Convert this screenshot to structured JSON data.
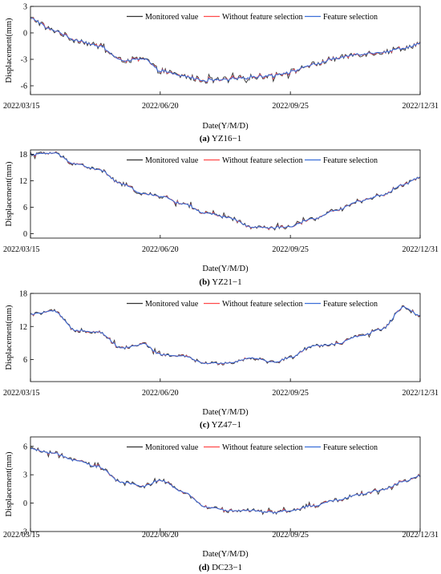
{
  "colors": {
    "monitored": "#333333",
    "without": "#ff4a4a",
    "feature": "#3a6fd8",
    "axis": "#000000"
  },
  "chart_data": [
    {
      "type": "line",
      "caption": {
        "letter": "(a)",
        "name": "YZ16−1"
      },
      "xlabel": "Date(Y/M/D)",
      "ylabel": "Displacement(mm)",
      "x_ticks": [
        "2022/03/15",
        "2022/06/20",
        "2022/09/25",
        "2022/12/31"
      ],
      "xlim": [
        "2022/03/15",
        "2022/12/31"
      ],
      "ylim": [
        -7,
        3
      ],
      "y_ticks": [
        "-6",
        "-3",
        "0",
        "3"
      ],
      "y_tick_values": [
        -6,
        -3,
        0,
        3
      ],
      "legend": [
        "Monitored value",
        "Without feature selection",
        "Feature selection"
      ],
      "legend_position": "top-right",
      "grid": false,
      "series_points": {
        "x": [
          "2022/03/15",
          "2022/04/01",
          "2022/04/18",
          "2022/05/05",
          "2022/05/22",
          "2022/06/08",
          "2022/06/20",
          "2022/07/07",
          "2022/07/24",
          "2022/08/10",
          "2022/08/27",
          "2022/09/13",
          "2022/09/25",
          "2022/10/12",
          "2022/10/29",
          "2022/11/15",
          "2022/12/02",
          "2022/12/19",
          "2022/12/31"
        ],
        "y": [
          1.6,
          0.3,
          -0.8,
          -1.5,
          -3.1,
          -3.0,
          -4.3,
          -4.9,
          -5.4,
          -5.3,
          -5.0,
          -4.8,
          -4.4,
          -3.6,
          -2.9,
          -2.4,
          -2.2,
          -1.7,
          -1.2
        ]
      },
      "noise_amplitude": 0.35
    },
    {
      "type": "line",
      "caption": {
        "letter": "(b)",
        "name": "YZ21−1"
      },
      "xlabel": "Date(Y/M/D)",
      "ylabel": "Displacement(mm)",
      "x_ticks": [
        "2022/03/15",
        "2022/06/20",
        "2022/09/25",
        "2022/12/31"
      ],
      "xlim": [
        "2022/03/15",
        "2022/12/31"
      ],
      "ylim": [
        -1,
        19
      ],
      "y_ticks": [
        "0",
        "6",
        "12",
        "18"
      ],
      "y_tick_values": [
        0,
        6,
        12,
        18
      ],
      "legend": [
        "Monitored value",
        "Without feature selection",
        "Feature selection"
      ],
      "legend_position": "top-right",
      "grid": false,
      "series_points": {
        "x": [
          "2022/03/15",
          "2022/04/01",
          "2022/04/18",
          "2022/05/05",
          "2022/05/22",
          "2022/06/08",
          "2022/06/20",
          "2022/07/07",
          "2022/07/24",
          "2022/08/10",
          "2022/08/27",
          "2022/09/13",
          "2022/09/25",
          "2022/10/12",
          "2022/10/29",
          "2022/11/15",
          "2022/12/02",
          "2022/12/19",
          "2022/12/31"
        ],
        "y": [
          18.0,
          18.3,
          15.8,
          14.5,
          11.3,
          9.0,
          8.5,
          6.8,
          4.6,
          3.6,
          1.5,
          1.3,
          1.6,
          3.4,
          5.2,
          7.4,
          8.7,
          11.2,
          12.8
        ]
      },
      "noise_amplitude": 0.5
    },
    {
      "type": "line",
      "caption": {
        "letter": "(c)",
        "name": "YZ47−1"
      },
      "xlabel": "Date(Y/M/D)",
      "ylabel": "Displacement(mm)",
      "x_ticks": [
        "2022/03/15",
        "2022/06/20",
        "2022/09/25",
        "2022/12/31"
      ],
      "xlim": [
        "2022/03/15",
        "2022/12/31"
      ],
      "ylim": [
        2,
        18
      ],
      "y_ticks": [
        "6",
        "12",
        "18"
      ],
      "y_tick_values": [
        6,
        12,
        18
      ],
      "legend": [
        "Monitored value",
        "Without feature selection",
        "Feature selection"
      ],
      "legend_position": "top-right",
      "grid": false,
      "series_points": {
        "x": [
          "2022/03/15",
          "2022/04/01",
          "2022/04/18",
          "2022/05/05",
          "2022/05/22",
          "2022/06/08",
          "2022/06/20",
          "2022/07/07",
          "2022/07/24",
          "2022/08/10",
          "2022/08/27",
          "2022/09/13",
          "2022/09/25",
          "2022/10/12",
          "2022/10/29",
          "2022/11/15",
          "2022/12/02",
          "2022/12/19",
          "2022/12/31"
        ],
        "y": [
          14.2,
          14.8,
          11.3,
          11.0,
          8.1,
          8.8,
          6.9,
          6.6,
          5.3,
          5.4,
          6.3,
          5.5,
          6.4,
          8.5,
          8.8,
          10.2,
          11.5,
          15.5,
          14.0
        ]
      },
      "noise_amplitude": 0.35
    },
    {
      "type": "line",
      "caption": {
        "letter": "(d)",
        "name": "DC23−1"
      },
      "xlabel": "Date(Y/M/D)",
      "ylabel": "Displacement(mm)",
      "x_ticks": [
        "2022/03/15",
        "2022/06/20",
        "2022/09/25",
        "2022/12/31"
      ],
      "xlim": [
        "2022/03/15",
        "2022/12/31"
      ],
      "ylim": [
        -3,
        7
      ],
      "y_ticks": [
        "-3",
        "0",
        "3",
        "6"
      ],
      "y_tick_values": [
        -3,
        0,
        3,
        6
      ],
      "legend": [
        "Monitored value",
        "Without feature selection",
        "Feature selection"
      ],
      "legend_position": "top-right",
      "grid": false,
      "series_points": {
        "x": [
          "2022/03/15",
          "2022/04/01",
          "2022/04/18",
          "2022/05/05",
          "2022/05/22",
          "2022/06/08",
          "2022/06/20",
          "2022/07/07",
          "2022/07/24",
          "2022/08/10",
          "2022/08/27",
          "2022/09/13",
          "2022/09/25",
          "2022/10/12",
          "2022/10/29",
          "2022/11/15",
          "2022/12/02",
          "2022/12/19",
          "2022/12/31"
        ],
        "y": [
          5.7,
          5.3,
          4.5,
          3.8,
          2.2,
          1.8,
          2.4,
          1.2,
          -0.4,
          -0.8,
          -0.8,
          -1.0,
          -0.8,
          -0.3,
          0.3,
          0.9,
          1.4,
          2.3,
          2.9
        ]
      },
      "noise_amplitude": 0.22
    }
  ]
}
